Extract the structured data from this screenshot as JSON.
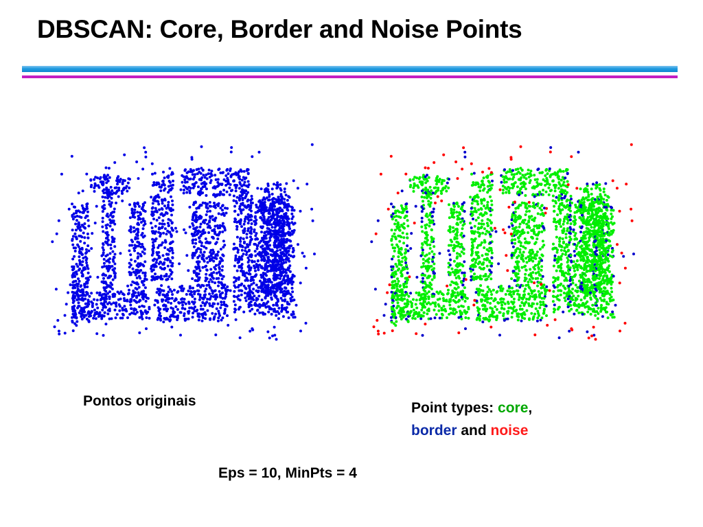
{
  "slide": {
    "title": "DBSCAN: Core, Border and Noise Points",
    "left_caption": "Pontos originais",
    "right_caption": {
      "prefix": "Point types: ",
      "core": "core",
      "comma": ",",
      "border": "border",
      "and": " and ",
      "noise": "noise"
    },
    "params": "Eps = 10, MinPts = 4"
  },
  "colors": {
    "original": "#0000e6",
    "core": "#00ee00",
    "border": "#0000cc",
    "noise": "#ff0000",
    "rule_blue": "#1e9be0",
    "rule_magenta": "#c21ec2"
  }
}
